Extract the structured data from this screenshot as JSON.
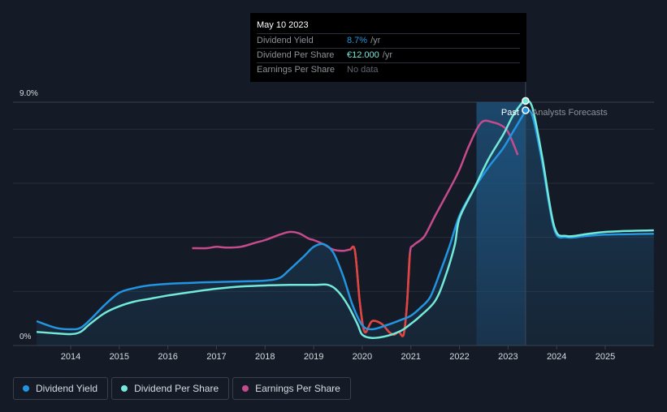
{
  "tooltip": {
    "date": "May 10 2023",
    "rows": [
      {
        "label": "Dividend Yield",
        "value": "8.7%",
        "unit": "/yr"
      },
      {
        "label": "Dividend Per Share",
        "value": "€12.000",
        "unit": "/yr"
      },
      {
        "label": "Earnings Per Share",
        "value": "No data"
      }
    ]
  },
  "legend": [
    {
      "label": "Dividend Yield",
      "color": "#2394df"
    },
    {
      "label": "Dividend Per Share",
      "color": "#73e9d9"
    },
    {
      "label": "Earnings Per Share",
      "color": "#c64b8d"
    }
  ],
  "chart_data": {
    "type": "line",
    "y_top_label": "9.0%",
    "y_bottom_label": "0%",
    "ylim": [
      0,
      9
    ],
    "xlim": [
      2013.3,
      2026.0
    ],
    "x_ticks": [
      "2014",
      "2015",
      "2016",
      "2017",
      "2018",
      "2019",
      "2020",
      "2021",
      "2022",
      "2023",
      "2024",
      "2025"
    ],
    "past_label": "Past",
    "forecast_label": "Analysts Forecasts",
    "forecast_start": 2022.35,
    "cursor_x": 2023.36,
    "colors": {
      "yield": "#2394df",
      "dps": "#73e9d9",
      "eps": "#c64b8d",
      "eps_drop": "#e0463f"
    },
    "series": [
      {
        "name": "Dividend Yield",
        "x": [
          2013.3,
          2013.7,
          2014.0,
          2014.2,
          2014.4,
          2014.7,
          2015.0,
          2015.3,
          2015.6,
          2016.0,
          2016.5,
          2017.0,
          2017.5,
          2018.0,
          2018.3,
          2018.5,
          2018.8,
          2019.0,
          2019.2,
          2019.4,
          2019.6,
          2019.8,
          2020.0,
          2020.2,
          2020.5,
          2020.8,
          2021.0,
          2021.2,
          2021.4,
          2021.6,
          2021.8,
          2022.0,
          2022.3,
          2022.6,
          2022.9,
          2023.1,
          2023.3,
          2023.36,
          2023.5,
          2023.7,
          2023.95,
          2024.2,
          2024.6,
          2025.0,
          2025.5,
          2026.0
        ],
        "values": [
          0.9,
          0.65,
          0.6,
          0.65,
          0.95,
          1.5,
          1.95,
          2.12,
          2.22,
          2.28,
          2.32,
          2.35,
          2.37,
          2.4,
          2.5,
          2.8,
          3.3,
          3.65,
          3.75,
          3.45,
          2.6,
          1.5,
          0.75,
          0.6,
          0.75,
          0.95,
          1.1,
          1.4,
          1.8,
          2.7,
          3.7,
          4.8,
          5.8,
          6.6,
          7.3,
          7.9,
          8.5,
          8.7,
          8.5,
          6.8,
          4.3,
          4.0,
          4.05,
          4.1,
          4.12,
          4.13
        ]
      },
      {
        "name": "Dividend Per Share",
        "x": [
          2013.3,
          2013.7,
          2014.0,
          2014.2,
          2014.4,
          2014.7,
          2015.0,
          2015.3,
          2015.6,
          2016.0,
          2016.5,
          2017.0,
          2017.5,
          2018.0,
          2018.5,
          2019.0,
          2019.3,
          2019.5,
          2019.7,
          2019.9,
          2020.0,
          2020.2,
          2020.5,
          2020.8,
          2021.0,
          2021.2,
          2021.5,
          2021.7,
          2021.9,
          2022.0,
          2022.3,
          2022.6,
          2022.9,
          2023.1,
          2023.3,
          2023.36,
          2023.5,
          2023.7,
          2023.95,
          2024.2,
          2024.6,
          2025.0,
          2025.5,
          2026.0
        ],
        "values": [
          0.5,
          0.45,
          0.42,
          0.5,
          0.8,
          1.2,
          1.45,
          1.62,
          1.72,
          1.85,
          1.98,
          2.1,
          2.18,
          2.22,
          2.24,
          2.24,
          2.24,
          2.0,
          1.5,
          0.8,
          0.4,
          0.28,
          0.35,
          0.55,
          0.8,
          1.1,
          1.65,
          2.5,
          3.7,
          4.7,
          5.8,
          6.9,
          7.8,
          8.5,
          9.0,
          9.05,
          8.8,
          7.0,
          4.4,
          4.05,
          4.12,
          4.2,
          4.24,
          4.26
        ]
      },
      {
        "name": "Earnings Per Share",
        "x": [
          2016.5,
          2016.8,
          2017.0,
          2017.2,
          2017.5,
          2017.8,
          2018.0,
          2018.3,
          2018.5,
          2018.7,
          2018.9,
          2019.0,
          2019.2,
          2019.4,
          2019.6,
          2019.75,
          2019.85,
          2019.95,
          2020.05,
          2020.2,
          2020.4,
          2020.55,
          2020.65,
          2020.75,
          2020.85,
          2020.92,
          2020.98,
          2021.05,
          2021.2,
          2021.3,
          2021.5,
          2021.8,
          2022.0,
          2022.2,
          2022.45,
          2022.7,
          2022.9,
          2023.0,
          2023.1,
          2023.2
        ],
        "values": [
          3.6,
          3.6,
          3.65,
          3.62,
          3.65,
          3.8,
          3.9,
          4.1,
          4.2,
          4.15,
          3.95,
          3.9,
          3.75,
          3.55,
          3.5,
          3.55,
          3.5,
          1.6,
          0.5,
          0.9,
          0.8,
          0.5,
          0.4,
          0.5,
          0.4,
          1.5,
          3.4,
          3.7,
          3.9,
          4.1,
          4.8,
          5.8,
          6.5,
          7.4,
          8.25,
          8.25,
          8.1,
          7.9,
          7.5,
          7.05
        ]
      }
    ]
  }
}
